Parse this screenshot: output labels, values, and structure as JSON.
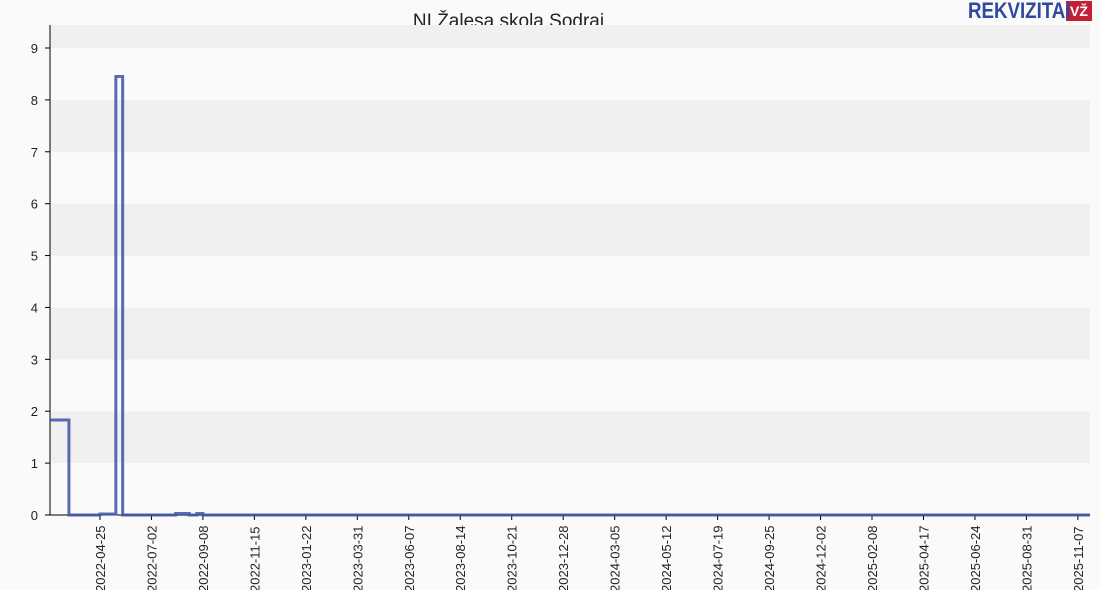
{
  "logo": {
    "text": "REKVIZITAI",
    "badge": "VŽ"
  },
  "chart_data": {
    "type": "line",
    "title": "NI Žalesa skola Sodrai",
    "xlabel": "",
    "ylabel": "",
    "ylim": [
      0,
      9
    ],
    "xlim": [
      "2022-02-18",
      "2025-11-23"
    ],
    "yticks": [
      0,
      1,
      2,
      3,
      4,
      5,
      6,
      7,
      8,
      9
    ],
    "xticks": [
      "2022-04-25",
      "2022-07-02",
      "2022-09-08",
      "2022-11-15",
      "2023-01-22",
      "2023-03-31",
      "2023-06-07",
      "2023-08-14",
      "2023-10-21",
      "2023-12-28",
      "2024-03-05",
      "2024-05-12",
      "2024-07-19",
      "2024-09-25",
      "2024-12-02",
      "2025-02-08",
      "2025-04-17",
      "2025-06-24",
      "2025-08-31",
      "2025-11-07"
    ],
    "grid": "horizontal bands",
    "color": "#3a52a4",
    "step": true,
    "points": [
      [
        "2022-02-18",
        1.83
      ],
      [
        "2022-03-15",
        0
      ],
      [
        "2022-04-25",
        0.02
      ],
      [
        "2022-05-16",
        8.45
      ],
      [
        "2022-05-25",
        0
      ],
      [
        "2022-08-03",
        0.03
      ],
      [
        "2022-08-21",
        0
      ],
      [
        "2022-08-31",
        0.03
      ],
      [
        "2022-09-08",
        0
      ],
      [
        "2025-11-23",
        0
      ]
    ]
  }
}
